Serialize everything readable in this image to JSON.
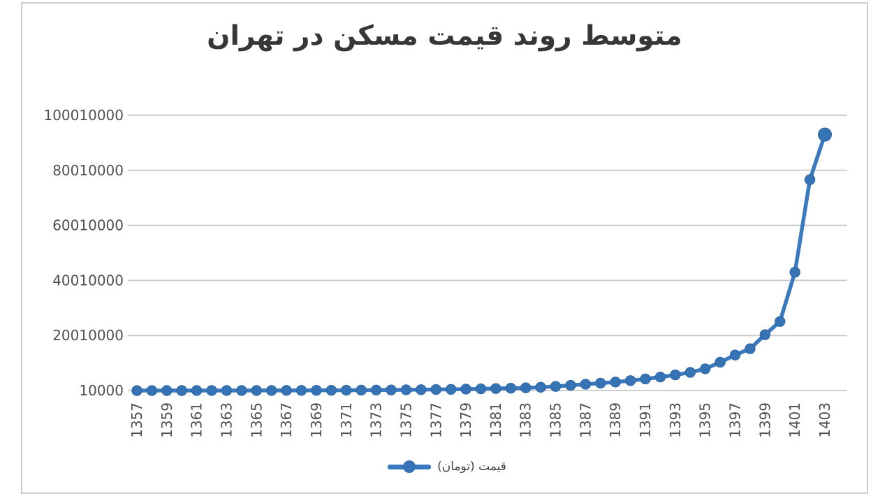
{
  "colors": {
    "series_line": "#3b79bf",
    "marker_fill": "#3673b4",
    "marker_edge": "#2e66a3",
    "gridline": "#cdcdcd",
    "axis_text": "#4f4f4f",
    "title_text": "#373737",
    "frame_border": "#cbcbcb",
    "background": "#ffffff"
  },
  "chart_data": {
    "type": "line",
    "title": "متوسط روند قیمت مسکن در تهران",
    "xlabel": "",
    "ylabel": "",
    "grid": "horizontal-only",
    "legend_position": "bottom-center",
    "x": [
      1357,
      1358,
      1359,
      1360,
      1361,
      1362,
      1363,
      1364,
      1365,
      1366,
      1367,
      1368,
      1369,
      1370,
      1371,
      1372,
      1373,
      1374,
      1375,
      1376,
      1377,
      1378,
      1379,
      1380,
      1381,
      1382,
      1383,
      1384,
      1385,
      1386,
      1387,
      1388,
      1389,
      1390,
      1391,
      1392,
      1393,
      1394,
      1395,
      1396,
      1397,
      1398,
      1399,
      1400,
      1401,
      1402,
      1403
    ],
    "series": [
      {
        "name": "قیمت (تومان)",
        "values": [
          4500,
          5500,
          7000,
          9000,
          12000,
          15000,
          19000,
          24000,
          30000,
          38000,
          48000,
          60000,
          75000,
          95000,
          120000,
          150000,
          185000,
          225000,
          270000,
          320000,
          380000,
          450000,
          530000,
          620000,
          730000,
          860000,
          1000000,
          1200000,
          1500000,
          1900000,
          2300000,
          2700000,
          3100000,
          3600000,
          4200000,
          4900000,
          5700000,
          6600000,
          7900000,
          10300000,
          12900000,
          15200000,
          20300000,
          25100000,
          43000000,
          76600000,
          93000000
        ]
      }
    ],
    "xtick_labels": [
      "1357",
      "1359",
      "1361",
      "1363",
      "1365",
      "1367",
      "1369",
      "1371",
      "1373",
      "1375",
      "1377",
      "1379",
      "1381",
      "1383",
      "1385",
      "1387",
      "1389",
      "1391",
      "1393",
      "1395",
      "1397",
      "1399",
      "1401",
      "1403"
    ],
    "ytick_values": [
      10000,
      20010000,
      40010000,
      60010000,
      80010000,
      100010000
    ],
    "ytick_labels": [
      "10000",
      "20010000",
      "40010000",
      "60010000",
      "80010000",
      "100010000"
    ],
    "ylim": [
      10000,
      100010000
    ]
  }
}
